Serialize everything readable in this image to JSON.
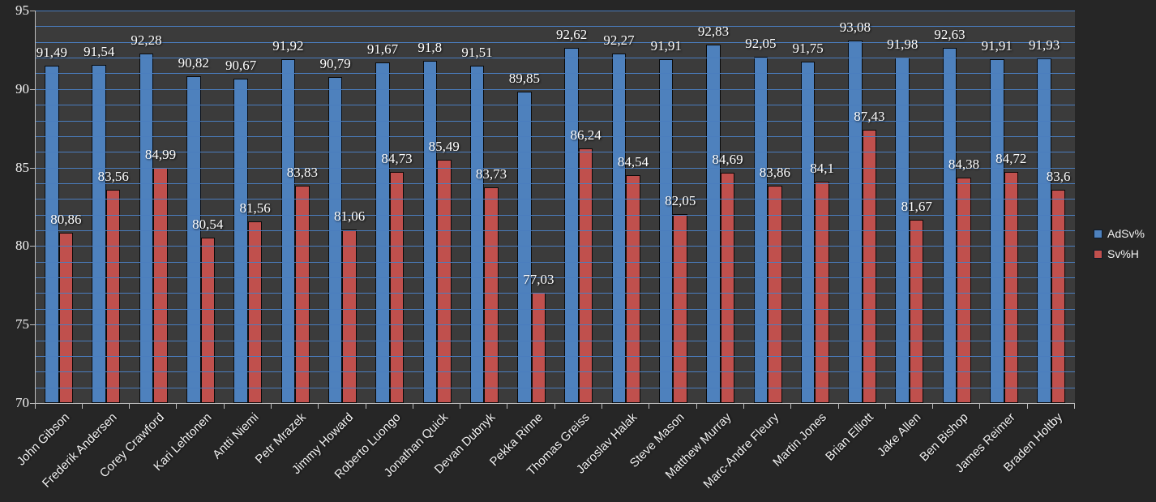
{
  "chart_data": {
    "type": "bar",
    "title": "",
    "xlabel": "",
    "ylabel": "",
    "ylim": [
      70,
      95
    ],
    "yticks": [
      "70",
      "75",
      "80",
      "85",
      "90",
      "95"
    ],
    "minor_gridline_unit": 1,
    "grid": true,
    "legend_position": "right",
    "decimal_separator": ",",
    "categories": [
      "John Gibson",
      "Frederik Andersen",
      "Corey Crawford",
      "Kari Lehtonen",
      "Antti Niemi",
      "Petr Mrazek",
      "Jimmy Howard",
      "Roberto Luongo",
      "Jonathan Quick",
      "Devan Dubnyk",
      "Pekka Rinne",
      "Thomas Greiss",
      "Jaroslav Halak",
      "Steve Mason",
      "Matthew Murray",
      "Marc-Andre Fleury",
      "Martin Jones",
      "Brian Elliott",
      "Jake Allen",
      "Ben Bishop",
      "James Reimer",
      "Braden Holtby"
    ],
    "series": [
      {
        "name": "AdSv%",
        "color": "#4e81bd",
        "border_color": "#0a0a0a",
        "values": [
          91.49,
          91.54,
          92.28,
          90.82,
          90.67,
          91.92,
          90.79,
          91.67,
          91.8,
          91.51,
          89.85,
          92.62,
          92.27,
          91.91,
          92.83,
          92.05,
          91.75,
          93.08,
          91.98,
          92.63,
          91.91,
          91.93
        ],
        "labels": [
          "91,49",
          "91,54",
          "92,28",
          "90,82",
          "90,67",
          "91,92",
          "90,79",
          "91,67",
          "91,8",
          "91,51",
          "89,85",
          "92,62",
          "92,27",
          "91,91",
          "92,83",
          "92,05",
          "91,75",
          "93,08",
          "91,98",
          "92,63",
          "91,91",
          "91,93"
        ]
      },
      {
        "name": "Sv%H",
        "color": "#c0504d",
        "border_color": "#0a0a0a",
        "values": [
          80.86,
          83.56,
          84.99,
          80.54,
          81.56,
          83.83,
          81.06,
          84.73,
          85.49,
          83.73,
          77.03,
          86.24,
          84.54,
          82.05,
          84.69,
          83.86,
          84.1,
          87.43,
          81.67,
          84.38,
          84.72,
          83.6
        ],
        "labels": [
          "80,86",
          "83,56",
          "84,99",
          "80,54",
          "81,56",
          "83,83",
          "81,06",
          "84,73",
          "85,49",
          "83,73",
          "77,03",
          "86,24",
          "84,54",
          "82,05",
          "84,69",
          "83,86",
          "84,1",
          "87,43",
          "81,67",
          "84,38",
          "84,72",
          "83,6"
        ]
      }
    ],
    "colors": {
      "outer_background": "#262626",
      "plot_background": "#3b3b3b",
      "gridline": "#4a7dbe",
      "axis_line": "#bdbdbd",
      "text": "#f2f2f2"
    }
  }
}
